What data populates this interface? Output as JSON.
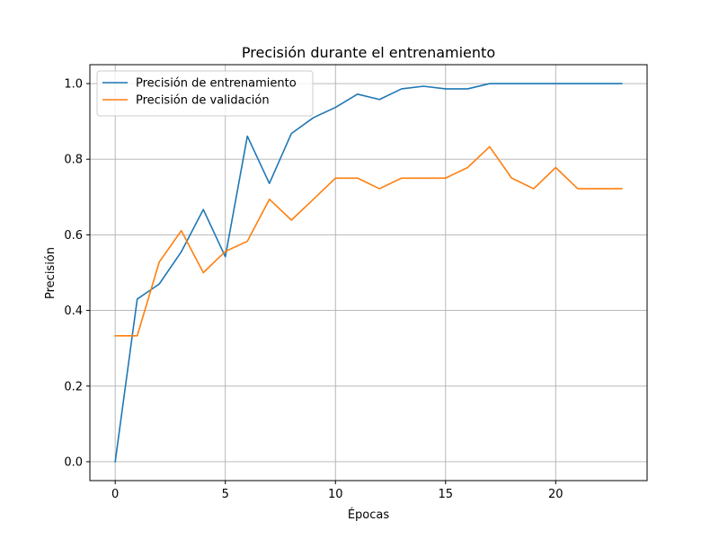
{
  "chart_data": {
    "type": "line",
    "title": "Precisión durante el entrenamiento",
    "xlabel": "Épocas",
    "ylabel": "Precisión",
    "xlim": [
      -1.15,
      24.15
    ],
    "ylim": [
      -0.05,
      1.05
    ],
    "xticks": [
      0,
      5,
      10,
      15,
      20
    ],
    "yticks": [
      0.0,
      0.2,
      0.4,
      0.6,
      0.8,
      1.0
    ],
    "xtick_labels": [
      "0",
      "5",
      "10",
      "15",
      "20"
    ],
    "ytick_labels": [
      "0.0",
      "0.2",
      "0.4",
      "0.6",
      "0.8",
      "1.0"
    ],
    "grid": true,
    "legend_position": "top-left",
    "x": [
      0,
      1,
      2,
      3,
      4,
      5,
      6,
      7,
      8,
      9,
      10,
      11,
      12,
      13,
      14,
      15,
      16,
      17,
      18,
      19,
      20,
      21,
      22,
      23
    ],
    "series": [
      {
        "name": "Precisión de entrenamiento",
        "color": "#1f77b4",
        "values": [
          0.0,
          0.43,
          0.47,
          0.555,
          0.667,
          0.542,
          0.861,
          0.736,
          0.868,
          0.91,
          0.937,
          0.972,
          0.958,
          0.986,
          0.993,
          0.986,
          0.986,
          1.0,
          1.0,
          1.0,
          1.0,
          1.0,
          1.0,
          1.0
        ]
      },
      {
        "name": "Precisión de validación",
        "color": "#ff7f0e",
        "values": [
          0.333,
          0.333,
          0.528,
          0.611,
          0.5,
          0.556,
          0.583,
          0.694,
          0.639,
          0.694,
          0.75,
          0.75,
          0.722,
          0.75,
          0.75,
          0.75,
          0.778,
          0.833,
          0.75,
          0.722,
          0.778,
          0.722,
          0.722,
          0.722
        ]
      }
    ]
  }
}
